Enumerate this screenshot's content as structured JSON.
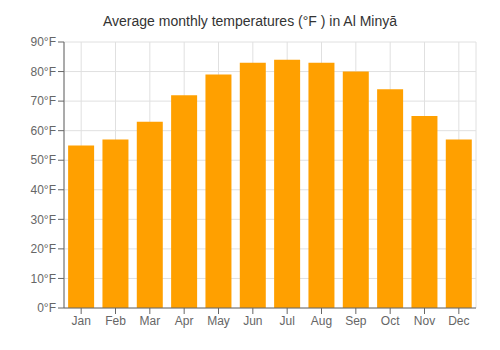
{
  "chart_data": {
    "type": "bar",
    "title": "Average monthly temperatures (°F ) in Al Minyā",
    "categories": [
      "Jan",
      "Feb",
      "Mar",
      "Apr",
      "May",
      "Jun",
      "Jul",
      "Aug",
      "Sep",
      "Oct",
      "Nov",
      "Dec"
    ],
    "values": [
      55,
      57,
      63,
      72,
      79,
      83,
      84,
      83,
      80,
      74,
      65,
      57
    ],
    "color": "#FFA000",
    "ylim": [
      0,
      90
    ],
    "yticks": [
      {
        "value": 0,
        "label": "0°F"
      },
      {
        "value": 10,
        "label": "10°F"
      },
      {
        "value": 20,
        "label": "20°F"
      },
      {
        "value": 30,
        "label": "30°F"
      },
      {
        "value": 40,
        "label": "40°F"
      },
      {
        "value": 50,
        "label": "50°F"
      },
      {
        "value": 60,
        "label": "60°F"
      },
      {
        "value": 70,
        "label": "70°F"
      },
      {
        "value": 80,
        "label": "80°F"
      },
      {
        "value": 90,
        "label": "90°F"
      }
    ],
    "grid": true
  }
}
